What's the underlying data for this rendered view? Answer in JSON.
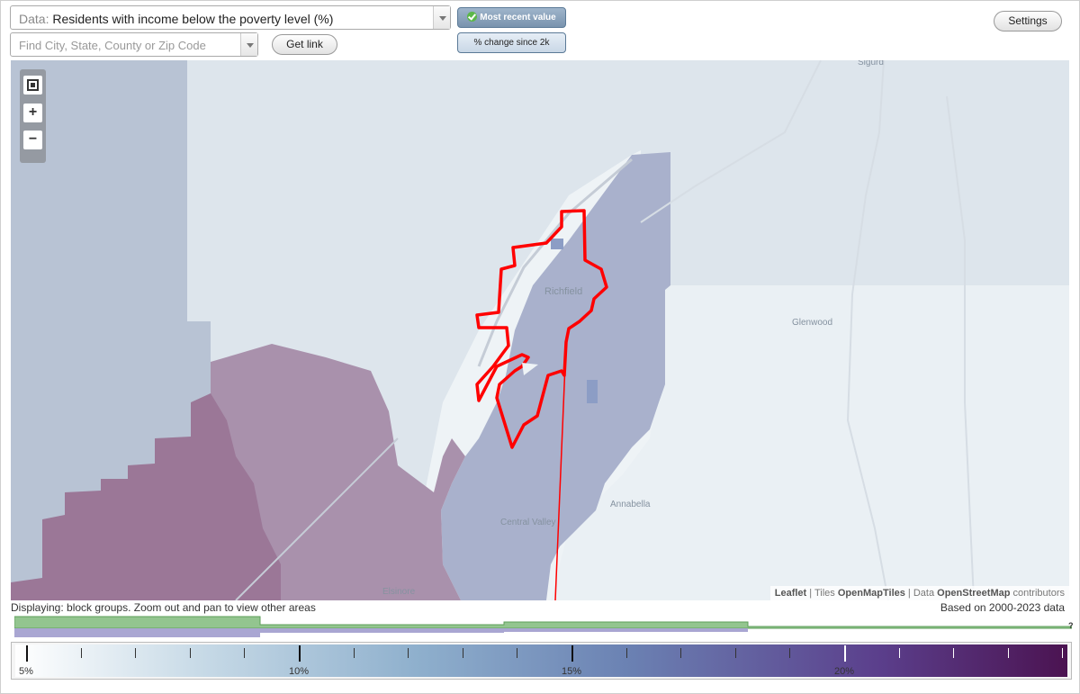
{
  "controls": {
    "data_prefix": "Data:",
    "data_value": "Residents with income below the poverty level (%)",
    "find_placeholder": "Find City, State, County or Zip Code",
    "get_link": "Get link",
    "settings": "Settings",
    "toggle_recent": "Most recent value",
    "toggle_change": "% change since 2k"
  },
  "map": {
    "places": [
      "Sigurd",
      "Richfield",
      "Glenwood",
      "Central Valley",
      "Annabella",
      "Elsinore"
    ],
    "attribution": {
      "leaflet": "Leaflet",
      "sep": "|",
      "tiles": "Tiles",
      "tiles_src": "OpenMapTiles",
      "data": "Data",
      "data_src": "OpenStreetMap",
      "contrib": "contributors"
    },
    "colors": {
      "low": "#eef3f6",
      "mid": "#a9b1cc",
      "high": "#a27a9c",
      "highest": "#9a6f93",
      "outline": "#ff0000"
    }
  },
  "notes": {
    "displaying": "Displaying: block groups. Zoom out and pan to view other areas",
    "based_on": "Based on 2000-2023 data",
    "help": "?"
  },
  "legend": {
    "labels": [
      {
        "text": "5%",
        "value": 5
      },
      {
        "text": "10%",
        "value": 10
      },
      {
        "text": "15%",
        "value": 15
      },
      {
        "text": "20%",
        "value": 20
      }
    ],
    "min": 5,
    "max": 25,
    "color_low": "#ffffff",
    "color_high": "#4b1351",
    "distribution_color_green": "#93c58f",
    "distribution_color_purple": "#a9a6d2"
  }
}
